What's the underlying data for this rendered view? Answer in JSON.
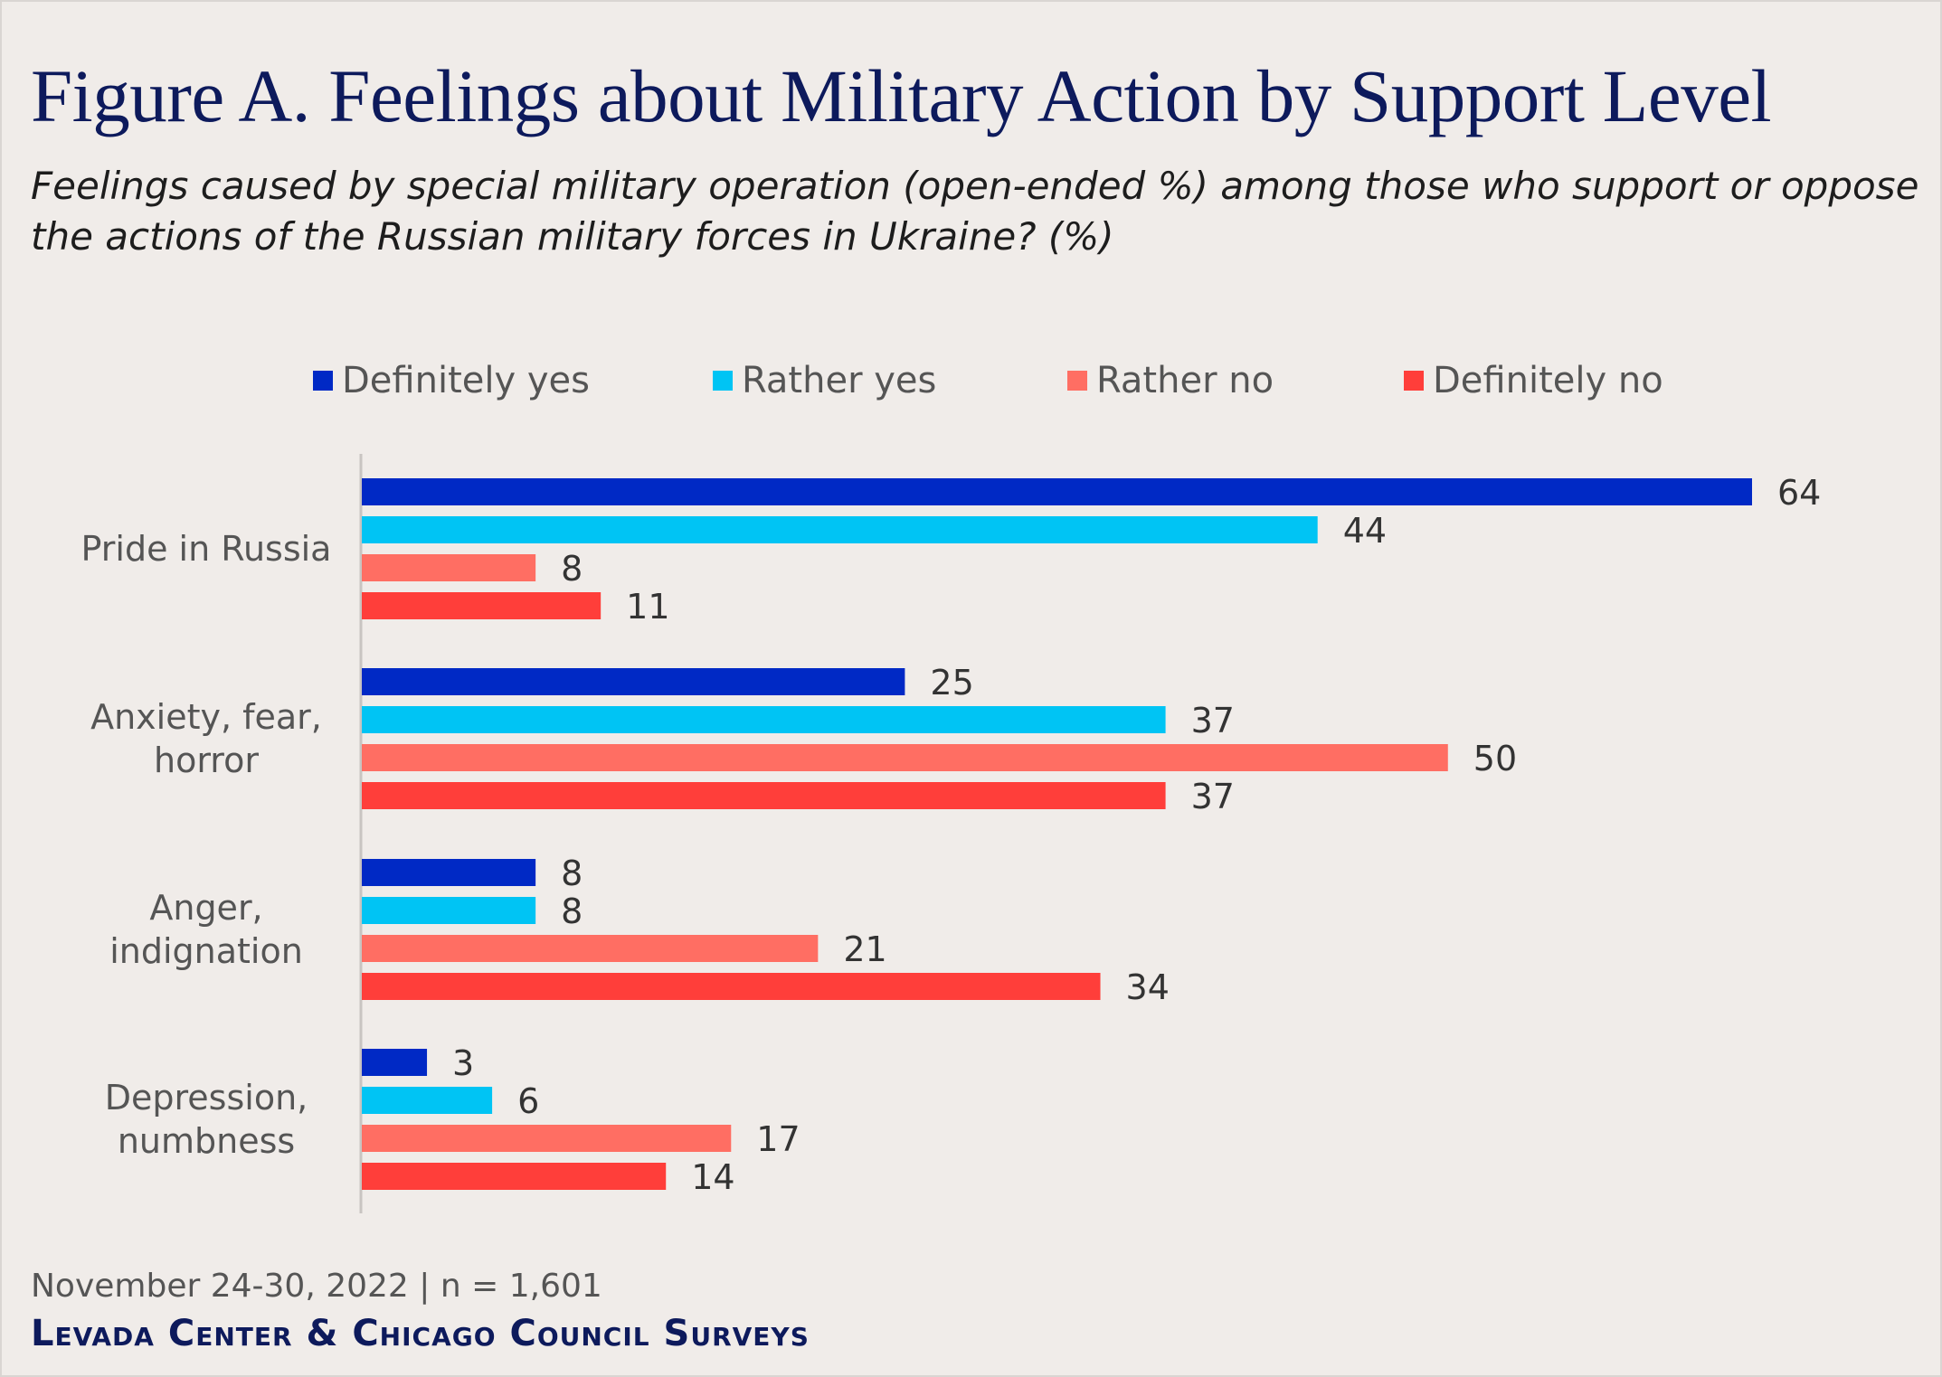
{
  "header": {
    "title": "Figure A. Feelings about Military Action by Support Level",
    "subtitle": "Feelings caused by special military operation (open-ended %) among those who support or oppose the actions of the Russian military forces in Ukraine? (%)"
  },
  "footer": {
    "note": "November 24-30, 2022 | n = 1,601",
    "source": "Levada Center & Chicago Council Surveys"
  },
  "chart_data": {
    "type": "bar",
    "orientation": "horizontal",
    "categories": [
      [
        "Pride in Russia"
      ],
      [
        "Anxiety, fear,",
        "horror"
      ],
      [
        "Anger,",
        "indignation"
      ],
      [
        "Depression,",
        "numbness"
      ]
    ],
    "series": [
      {
        "name": "Definitely yes",
        "color": "#0029c5",
        "values": [
          64,
          25,
          8,
          3
        ]
      },
      {
        "name": "Rather yes",
        "color": "#00c4f4",
        "values": [
          44,
          37,
          8,
          6
        ]
      },
      {
        "name": "Rather no",
        "color": "#ff6e63",
        "values": [
          8,
          50,
          21,
          17
        ]
      },
      {
        "name": "Definitely no",
        "color": "#ff3e3a",
        "values": [
          11,
          37,
          34,
          14
        ]
      }
    ],
    "xlim": [
      0,
      64
    ],
    "legend_position": "top",
    "grid": false
  }
}
